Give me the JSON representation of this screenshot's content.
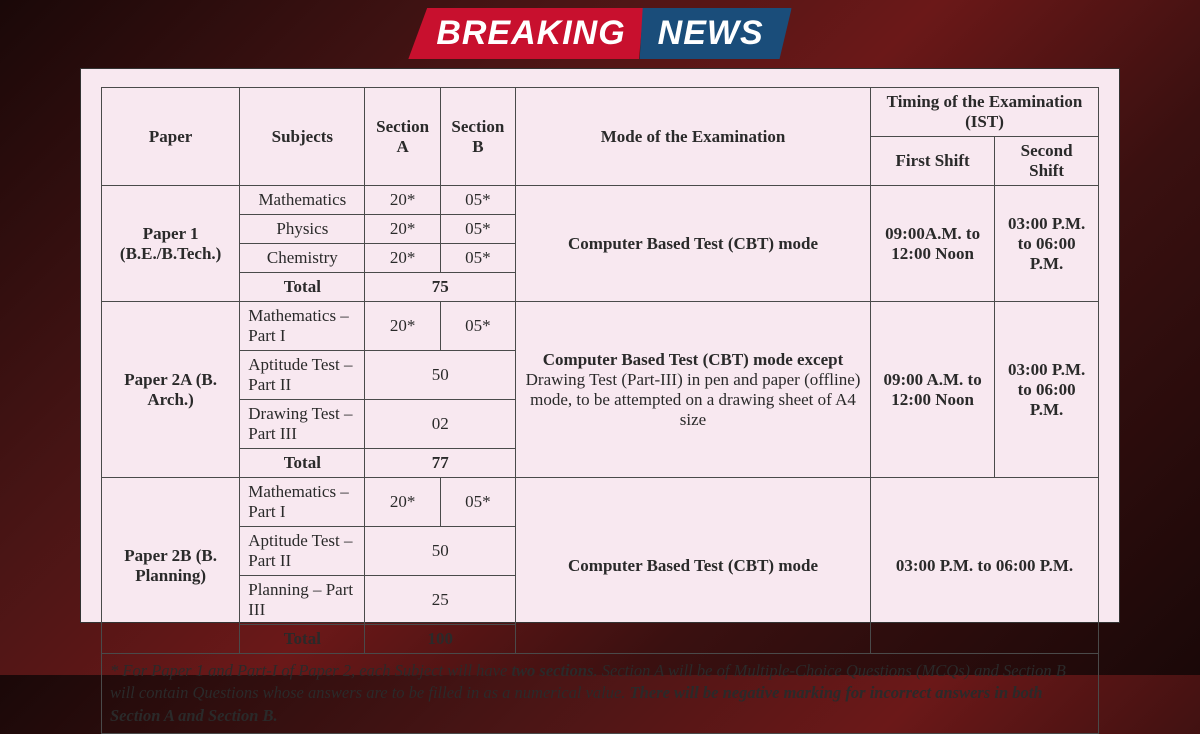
{
  "banner": {
    "left": "BREAKING",
    "right": "NEWS"
  },
  "colors": {
    "banner_red": "#c8102e",
    "banner_blue": "#1a4d7a",
    "panel_bg": "#f8e8f0",
    "border": "#4a4a4a",
    "text": "#2a2a2a"
  },
  "headers": {
    "paper": "Paper",
    "subjects": "Subjects",
    "sectionA": "Section A",
    "sectionB": "Section B",
    "mode": "Mode of the Examination",
    "timing": "Timing of the Examination (IST)",
    "firstShift": "First Shift",
    "secondShift": "Second Shift"
  },
  "paper1": {
    "name": "Paper 1 (B.E./B.Tech.)",
    "rows": [
      {
        "subject": "Mathematics",
        "a": "20*",
        "b": "05*"
      },
      {
        "subject": "Physics",
        "a": "20*",
        "b": "05*"
      },
      {
        "subject": "Chemistry",
        "a": "20*",
        "b": "05*"
      }
    ],
    "totalLabel": "Total",
    "totalValue": "75",
    "mode": "Computer Based Test (CBT) mode",
    "shift1": "09:00A.M. to 12:00 Noon",
    "shift2": "03:00 P.M. to 06:00 P.M."
  },
  "paper2A": {
    "name": "Paper 2A (B. Arch.)",
    "row1": {
      "subject": "Mathematics – Part I",
      "a": "20*",
      "b": "05*"
    },
    "row2": {
      "subject": "Aptitude Test – Part II",
      "val": "50"
    },
    "row3": {
      "subject": "Drawing Test – Part III",
      "val": "02"
    },
    "totalLabel": "Total",
    "totalValue": "77",
    "mode_part1": "Computer Based Test (CBT) mode except",
    "mode_part2": " Drawing Test (Part-III) in pen and paper (offline) mode, to be attempted on a drawing sheet of A4 size",
    "shift1": "09:00 A.M. to 12:00 Noon",
    "shift2": "03:00 P.M. to 06:00 P.M."
  },
  "paper2B": {
    "name": "Paper 2B (B. Planning)",
    "row1": {
      "subject": "Mathematics – Part I",
      "a": "20*",
      "b": "05*"
    },
    "row2": {
      "subject": "Aptitude Test – Part II",
      "val": "50"
    },
    "row3": {
      "subject": "Planning – Part III",
      "val": "25"
    },
    "totalLabel": "Total",
    "totalValue": "100",
    "mode": "Computer Based Test (CBT) mode",
    "timing": "03:00 P.M. to  06:00 P.M."
  },
  "footnote": {
    "p1": "* For Paper 1 and Part-I of Paper 2, each Subject will have ",
    "b1": "two sections",
    "p2": ". Section A will be of Multiple-Choice Questions (MCQs) and Section B will contain Questions whose answers are to be filled in as a numerical value. ",
    "b2": "There will be negative marking for incorrect answers in both Section A and Section B."
  }
}
